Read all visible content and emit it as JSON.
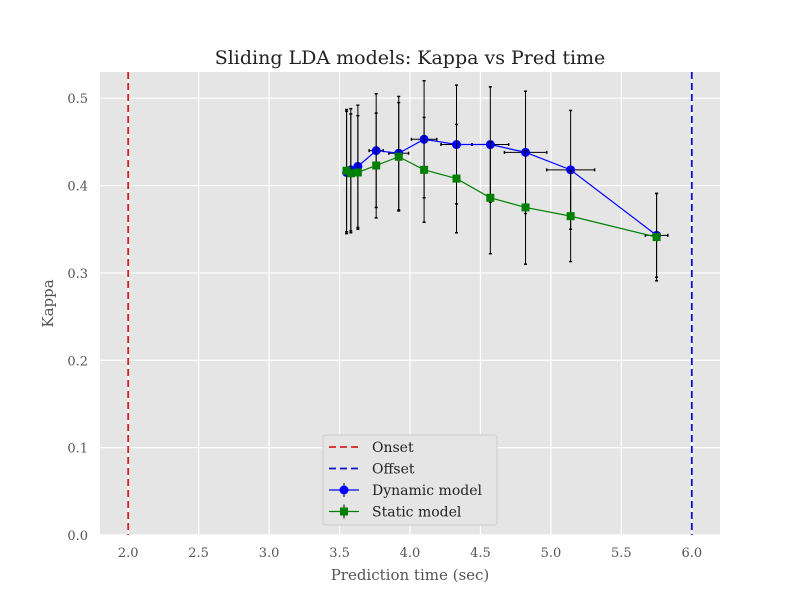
{
  "chart_data": {
    "type": "line",
    "title": "Sliding LDA models: Kappa vs Pred time",
    "xlabel": "Prediction time (sec)",
    "ylabel": "Kappa",
    "xlim": [
      1.8,
      6.2
    ],
    "ylim": [
      0.0,
      0.53
    ],
    "xticks": [
      2.0,
      2.5,
      3.0,
      3.5,
      4.0,
      4.5,
      5.0,
      5.5,
      6.0
    ],
    "yticks": [
      0.0,
      0.1,
      0.2,
      0.3,
      0.4,
      0.5
    ],
    "xtick_labels": [
      "2.0",
      "2.5",
      "3.0",
      "3.5",
      "4.0",
      "4.5",
      "5.0",
      "5.5",
      "6.0"
    ],
    "ytick_labels": [
      "0.0",
      "0.1",
      "0.2",
      "0.3",
      "0.4",
      "0.5"
    ],
    "grid": true,
    "legend_position": "lower-center",
    "vlines": [
      {
        "name": "Onset",
        "x": 2.0,
        "color": "#d62020",
        "style": "dashed"
      },
      {
        "name": "Offset",
        "x": 6.0,
        "color": "#1010d0",
        "style": "dashed"
      }
    ],
    "series": [
      {
        "name": "Dynamic model",
        "color": "#0000ff",
        "marker": "circle",
        "x": [
          3.55,
          3.58,
          3.63,
          3.76,
          3.92,
          4.1,
          4.33,
          4.57,
          4.82,
          5.14,
          5.75
        ],
        "y": [
          0.415,
          0.418,
          0.422,
          0.44,
          0.437,
          0.453,
          0.447,
          0.447,
          0.438,
          0.418,
          0.343
        ],
        "yerr": [
          0.07,
          0.07,
          0.07,
          0.065,
          0.065,
          0.067,
          0.068,
          0.066,
          0.07,
          0.068,
          0.048
        ],
        "xerr": [
          0.0,
          0.0,
          0.02,
          0.05,
          0.07,
          0.09,
          0.11,
          0.13,
          0.15,
          0.17,
          0.08
        ]
      },
      {
        "name": "Static model",
        "color": "#008000",
        "marker": "square",
        "x": [
          3.55,
          3.58,
          3.63,
          3.76,
          3.92,
          4.1,
          4.33,
          4.57,
          4.82,
          5.14,
          5.75
        ],
        "y": [
          0.417,
          0.414,
          0.415,
          0.423,
          0.433,
          0.418,
          0.408,
          0.386,
          0.375,
          0.365,
          0.341
        ],
        "yerr": [
          0.07,
          0.068,
          0.065,
          0.06,
          0.062,
          0.06,
          0.062,
          0.064,
          0.065,
          0.052,
          0.05
        ],
        "xerr": [
          0,
          0,
          0,
          0,
          0,
          0,
          0,
          0,
          0,
          0,
          0
        ]
      }
    ]
  },
  "legend": {
    "items": [
      {
        "label": "Onset",
        "color": "#d62020",
        "kind": "dashed"
      },
      {
        "label": "Offset",
        "color": "#1010d0",
        "kind": "dashed"
      },
      {
        "label": "Dynamic model",
        "color": "#0000ff",
        "kind": "circle"
      },
      {
        "label": "Static model",
        "color": "#008000",
        "kind": "square"
      }
    ]
  }
}
